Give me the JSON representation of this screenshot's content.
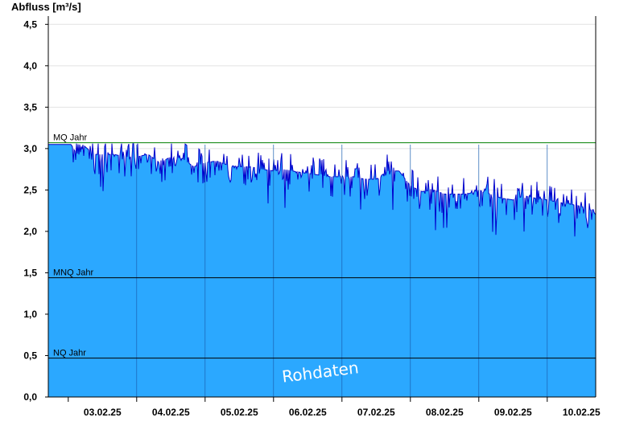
{
  "chart_data": {
    "type": "area",
    "ylabel": "Abfluss [m³/s]",
    "watermark": "Rohdaten",
    "ylim": [
      0,
      4.6
    ],
    "yticks": [
      0,
      0.5,
      1.0,
      1.5,
      2.0,
      2.5,
      3.0,
      3.5,
      4.0,
      4.5
    ],
    "ytick_labels": [
      "0,0",
      "0,5",
      "1,0",
      "1,5",
      "2,0",
      "2,5",
      "3,0",
      "3,5",
      "4,0",
      "4,5"
    ],
    "x_labels": [
      "03.02.25",
      "04.02.25",
      "05.02.25",
      "06.02.25",
      "07.02.25",
      "08.02.25",
      "09.02.25",
      "10.02.25"
    ],
    "x_start": "2025-02-02T17:00",
    "x_end": "2025-02-10T17:00",
    "grid": true,
    "colors": {
      "fill": "#2ba8ff",
      "line": "#0000cc",
      "mq": "#008000",
      "ref": "#000000"
    },
    "reference_lines": [
      {
        "name": "MQ Jahr",
        "value": 3.07,
        "color": "#008000"
      },
      {
        "name": "MNQ Jahr",
        "value": 1.44,
        "color": "#000000"
      },
      {
        "name": "NQ Jahr",
        "value": 0.47,
        "color": "#000000"
      }
    ],
    "series": [
      {
        "x": [
          "2025-02-02T17:00",
          "2025-02-03T01:00",
          "2025-02-03T03:00",
          "2025-02-03T05:00",
          "2025-02-03T09:00",
          "2025-02-03T12:00",
          "2025-02-03T16:00",
          "2025-02-03T20:00",
          "2025-02-04T00:00",
          "2025-02-04T04:00",
          "2025-02-04T08:00",
          "2025-02-04T12:00",
          "2025-02-04T16:00",
          "2025-02-04T20:00",
          "2025-02-05T00:00",
          "2025-02-05T04:00",
          "2025-02-05T08:00",
          "2025-02-05T12:00",
          "2025-02-05T16:00",
          "2025-02-05T20:00",
          "2025-02-06T00:00",
          "2025-02-06T04:00",
          "2025-02-06T08:00",
          "2025-02-06T12:00",
          "2025-02-06T16:00",
          "2025-02-06T20:00",
          "2025-02-07T00:00",
          "2025-02-07T04:00",
          "2025-02-07T08:00",
          "2025-02-07T12:00",
          "2025-02-07T16:00",
          "2025-02-07T20:00",
          "2025-02-08T00:00",
          "2025-02-08T04:00",
          "2025-02-08T08:00",
          "2025-02-08T12:00",
          "2025-02-08T16:00",
          "2025-02-08T20:00",
          "2025-02-09T00:00",
          "2025-02-09T04:00",
          "2025-02-09T08:00",
          "2025-02-09T12:00",
          "2025-02-09T16:00",
          "2025-02-09T20:00",
          "2025-02-10T00:00",
          "2025-02-10T04:00",
          "2025-02-10T08:00",
          "2025-02-10T12:00",
          "2025-02-10T16:00",
          "2025-02-10T17:00"
        ],
        "y": [
          3.05,
          3.05,
          2.93,
          3.05,
          2.93,
          2.93,
          2.93,
          2.9,
          2.9,
          2.93,
          2.83,
          2.9,
          2.88,
          2.78,
          2.83,
          2.85,
          2.8,
          2.78,
          2.78,
          2.75,
          2.73,
          2.75,
          2.72,
          2.7,
          2.68,
          2.66,
          2.66,
          2.66,
          2.63,
          2.63,
          2.73,
          2.73,
          2.55,
          2.48,
          2.5,
          2.45,
          2.45,
          2.45,
          2.5,
          2.45,
          2.4,
          2.38,
          2.43,
          2.4,
          2.38,
          2.35,
          2.33,
          2.3,
          2.25,
          2.2
        ]
      }
    ]
  }
}
